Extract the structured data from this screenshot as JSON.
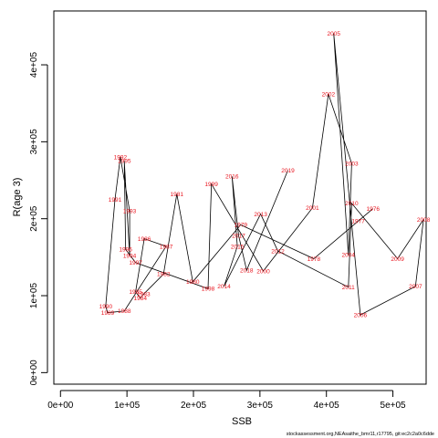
{
  "chart_data": {
    "type": "line",
    "xlabel": "SSB",
    "ylabel": "R(age 3)",
    "xlim": [
      -10000,
      550000
    ],
    "ylim": [
      -15000,
      470000
    ],
    "x_ticks": [
      0,
      100000,
      200000,
      300000,
      400000,
      500000
    ],
    "x_tick_labels": [
      "0e+00",
      "1e+05",
      "2e+05",
      "3e+05",
      "4e+05",
      "5e+05"
    ],
    "y_ticks": [
      0,
      100000,
      200000,
      300000,
      400000
    ],
    "y_tick_labels": [
      "0e+00",
      "1e+05",
      "2e+05",
      "3e+05",
      "4e+05"
    ],
    "label_color": "#e8141e",
    "line_color": "#000000",
    "footer": "stockassessment.org,NEAsaithe_bmr11,r17795, git:ec2c2a0c6dde",
    "points": [
      {
        "year": "1976",
        "x": 470000,
        "y": 213000
      },
      {
        "year": "1977",
        "x": 448000,
        "y": 197000
      },
      {
        "year": "1978",
        "x": 381000,
        "y": 148000
      },
      {
        "year": "1979",
        "x": 271000,
        "y": 192000
      },
      {
        "year": "1980",
        "x": 199000,
        "y": 118000
      },
      {
        "year": "1981",
        "x": 175000,
        "y": 232000
      },
      {
        "year": "1982",
        "x": 155000,
        "y": 128000
      },
      {
        "year": "1983",
        "x": 125000,
        "y": 102000
      },
      {
        "year": "1984",
        "x": 120000,
        "y": 97000
      },
      {
        "year": "1985",
        "x": 113000,
        "y": 105000
      },
      {
        "year": "1986",
        "x": 126000,
        "y": 174000
      },
      {
        "year": "1987",
        "x": 159000,
        "y": 164000
      },
      {
        "year": "1988",
        "x": 96000,
        "y": 80000
      },
      {
        "year": "1989",
        "x": 71000,
        "y": 78000
      },
      {
        "year": "1990",
        "x": 68000,
        "y": 86000
      },
      {
        "year": "1991",
        "x": 82000,
        "y": 225000
      },
      {
        "year": "1992",
        "x": 90000,
        "y": 280000
      },
      {
        "year": "1993",
        "x": 104000,
        "y": 210000
      },
      {
        "year": "1994",
        "x": 104000,
        "y": 152000
      },
      {
        "year": "1995",
        "x": 96000,
        "y": 275000
      },
      {
        "year": "1996",
        "x": 98000,
        "y": 160000
      },
      {
        "year": "1997",
        "x": 113000,
        "y": 143000
      },
      {
        "year": "1998",
        "x": 222000,
        "y": 109000
      },
      {
        "year": "1999",
        "x": 227000,
        "y": 245000
      },
      {
        "year": "2000",
        "x": 305000,
        "y": 132000
      },
      {
        "year": "2001",
        "x": 379000,
        "y": 214000
      },
      {
        "year": "2002",
        "x": 403000,
        "y": 362000
      },
      {
        "year": "2003",
        "x": 438000,
        "y": 272000
      },
      {
        "year": "2004",
        "x": 433000,
        "y": 153000
      },
      {
        "year": "2005",
        "x": 411000,
        "y": 441000
      },
      {
        "year": "2006",
        "x": 451000,
        "y": 75000
      },
      {
        "year": "2007",
        "x": 534000,
        "y": 112000
      },
      {
        "year": "2008",
        "x": 546000,
        "y": 199000
      },
      {
        "year": "2009",
        "x": 507000,
        "y": 148000
      },
      {
        "year": "2010",
        "x": 438000,
        "y": 220000
      },
      {
        "year": "2011",
        "x": 433000,
        "y": 111000
      },
      {
        "year": "2012",
        "x": 327000,
        "y": 158000
      },
      {
        "year": "2013",
        "x": 301000,
        "y": 206000
      },
      {
        "year": "2014",
        "x": 246000,
        "y": 112000
      },
      {
        "year": "2015",
        "x": 266000,
        "y": 164000
      },
      {
        "year": "2016",
        "x": 258000,
        "y": 255000
      },
      {
        "year": "2017",
        "x": 268000,
        "y": 178000
      },
      {
        "year": "2018",
        "x": 280000,
        "y": 133000
      },
      {
        "year": "2019",
        "x": 342000,
        "y": 263000
      }
    ]
  }
}
